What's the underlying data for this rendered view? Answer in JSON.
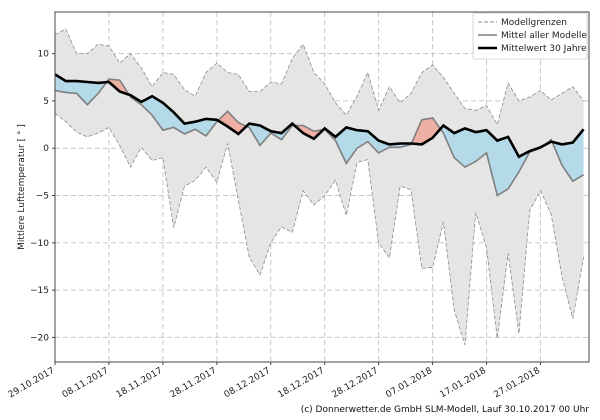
{
  "chart_data": {
    "type": "line",
    "title": "",
    "xlabel": "",
    "ylabel": "Mittlere Lufttemperatur [ ° ]",
    "ylim": [
      -22.6,
      14.4
    ],
    "xlim": [
      "2017-10-29",
      "2018-02-05"
    ],
    "yticks": [
      10,
      5,
      0,
      -5,
      -10,
      -15,
      -20
    ],
    "ytick_labels": [
      "10",
      "5",
      "0",
      "−5",
      "−10",
      "−15",
      "−20"
    ],
    "xticks": [
      "2017-10-29",
      "2017-11-08",
      "2017-11-18",
      "2017-11-28",
      "2017-12-08",
      "2017-12-18",
      "2017-12-28",
      "2018-01-07",
      "2018-01-17",
      "2018-01-27"
    ],
    "xtick_labels": [
      "29.10.2017",
      "08.11.2017",
      "18.11.2017",
      "28.11.2017",
      "08.12.2017",
      "18.12.2017",
      "28.12.2017",
      "07.01.2018",
      "17.01.2018",
      "27.01.2018"
    ],
    "grid": true,
    "legend_position": "top-right",
    "legend": [
      "Modellgrenzen",
      "Mittel aller Modelle",
      "Mittelwert 30 Jahre"
    ],
    "colors": {
      "band": "#e5e5e5",
      "band_edge": "#8c8c8c",
      "model_mean": "#7f7f7f",
      "climate_mean": "#000000",
      "warmer": "#eeb0a2",
      "colder": "#b4d9e8"
    },
    "x": [
      "2017-10-29",
      "2017-10-31",
      "2017-11-02",
      "2017-11-04",
      "2017-11-06",
      "2017-11-08",
      "2017-11-10",
      "2017-11-12",
      "2017-11-14",
      "2017-11-16",
      "2017-11-18",
      "2017-11-20",
      "2017-11-22",
      "2017-11-24",
      "2017-11-26",
      "2017-11-28",
      "2017-11-30",
      "2017-12-02",
      "2017-12-04",
      "2017-12-06",
      "2017-12-08",
      "2017-12-10",
      "2017-12-12",
      "2017-12-14",
      "2017-12-16",
      "2017-12-18",
      "2017-12-20",
      "2017-12-22",
      "2017-12-24",
      "2017-12-26",
      "2017-12-28",
      "2017-12-30",
      "2018-01-01",
      "2018-01-03",
      "2018-01-05",
      "2018-01-07",
      "2018-01-09",
      "2018-01-11",
      "2018-01-13",
      "2018-01-15",
      "2018-01-17",
      "2018-01-19",
      "2018-01-21",
      "2018-01-23",
      "2018-01-25",
      "2018-01-27",
      "2018-01-29",
      "2018-01-31",
      "2018-02-02",
      "2018-02-04"
    ],
    "series": [
      {
        "name": "Modellgrenzen",
        "role": "upper",
        "values": [
          12.0,
          12.6,
          10.0,
          10.0,
          11.0,
          10.8,
          9.0,
          10.0,
          8.5,
          6.5,
          8.0,
          7.8,
          6.2,
          5.5,
          8.0,
          9.0,
          8.0,
          7.8,
          6.0,
          6.0,
          7.0,
          6.8,
          9.5,
          11.0,
          8.0,
          6.8,
          4.8,
          3.5,
          5.5,
          8.0,
          4.0,
          6.5,
          4.8,
          5.8,
          8.0,
          8.8,
          7.5,
          5.8,
          4.2,
          4.0,
          4.5,
          2.5,
          6.9,
          5.0,
          5.4,
          6.1,
          5.1,
          5.8,
          6.5,
          5.0
        ]
      },
      {
        "name": "Modellgrenzen",
        "role": "lower",
        "values": [
          3.7,
          2.8,
          1.7,
          1.2,
          1.6,
          2.2,
          0.3,
          -2.0,
          0.1,
          -1.3,
          -1.0,
          -8.4,
          -4.0,
          -3.4,
          -2.0,
          -3.6,
          0.5,
          -5.5,
          -11.5,
          -13.4,
          -10.0,
          -8.3,
          -8.9,
          -4.5,
          -6.0,
          -5.0,
          -3.4,
          -7.1,
          -1.5,
          -1.2,
          -10.0,
          -11.6,
          -4.0,
          -4.4,
          -12.7,
          -12.6,
          -7.8,
          -17.1,
          -20.8,
          -6.8,
          -10.5,
          -20.1,
          -11.1,
          -19.6,
          -6.6,
          -4.5,
          -7.0,
          -13.6,
          -18.0,
          -11.5
        ]
      },
      {
        "name": "Mittel aller Modelle",
        "role": "model_mean",
        "values": [
          6.1,
          5.9,
          5.8,
          4.6,
          5.8,
          7.3,
          7.2,
          5.4,
          4.6,
          3.5,
          1.9,
          2.2,
          1.5,
          2.0,
          1.3,
          2.8,
          3.9,
          2.7,
          2.2,
          0.3,
          1.6,
          0.9,
          2.4,
          2.4,
          1.8,
          2.0,
          0.8,
          -1.6,
          0.0,
          0.7,
          -0.5,
          0.1,
          0.1,
          0.4,
          3.0,
          3.2,
          1.6,
          -1.0,
          -2.0,
          -1.4,
          -0.5,
          -5.0,
          -4.3,
          -2.5,
          -0.4,
          0.0,
          0.9,
          -1.8,
          -3.5,
          -2.8
        ]
      },
      {
        "name": "Mittelwert 30 Jahre",
        "role": "climate_mean",
        "values": [
          7.8,
          7.1,
          7.1,
          7.0,
          6.9,
          7.0,
          6.0,
          5.6,
          4.9,
          5.5,
          4.8,
          3.8,
          2.6,
          2.8,
          3.1,
          3.0,
          2.3,
          1.5,
          2.6,
          2.4,
          1.8,
          1.6,
          2.6,
          1.6,
          1.0,
          2.1,
          1.2,
          2.2,
          1.9,
          1.8,
          0.8,
          0.4,
          0.5,
          0.5,
          0.4,
          1.1,
          2.4,
          1.6,
          2.1,
          1.7,
          1.9,
          0.8,
          1.2,
          -0.9,
          -0.3,
          0.1,
          0.7,
          0.4,
          0.6,
          2.0
        ]
      }
    ]
  },
  "footer": "(c) Donnerwetter.de GmbH SLM-Modell, Lauf 30.10.2017 00 Uhr"
}
